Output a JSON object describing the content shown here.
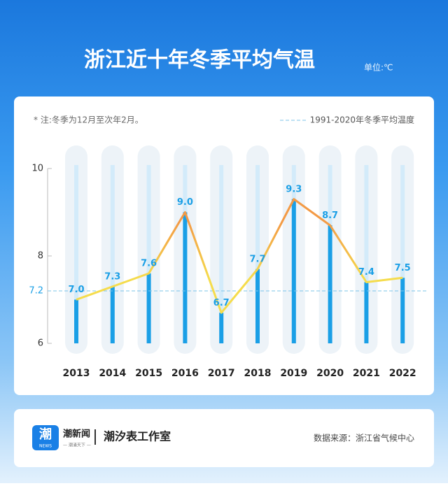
{
  "chart_data": {
    "type": "bar",
    "title": "浙江近十年冬季平均气温",
    "unit": "单位:℃",
    "note": "* 注:冬季为12月至次年2月。",
    "categories": [
      "2013",
      "2014",
      "2015",
      "2016",
      "2017",
      "2018",
      "2019",
      "2020",
      "2021",
      "2022"
    ],
    "values": [
      7.0,
      7.3,
      7.6,
      9.0,
      6.7,
      7.7,
      9.3,
      8.7,
      7.4,
      7.5
    ],
    "value_labels": [
      "7.0",
      "7.3",
      "7.6",
      "9.0",
      "6.7",
      "7.7",
      "9.3",
      "8.7",
      "7.4",
      "7.5"
    ],
    "color": "#1a9fe6",
    "line_colors": [
      "#f39a45",
      "#f5dc4c"
    ],
    "reference_line": {
      "value": 7.2,
      "label": "1991-2020年冬季平均温度",
      "color": "#7cc4ea"
    },
    "ylim": [
      6,
      10
    ],
    "yticks": [
      6,
      8,
      10
    ]
  },
  "footer": {
    "logo": "潮",
    "logo_sub": "NEWS",
    "brand": "潮新闻",
    "slogan": "— 潮涌天下 —",
    "studio": "潮汐表工作室",
    "source": "数据来源：浙江省气候中心"
  }
}
